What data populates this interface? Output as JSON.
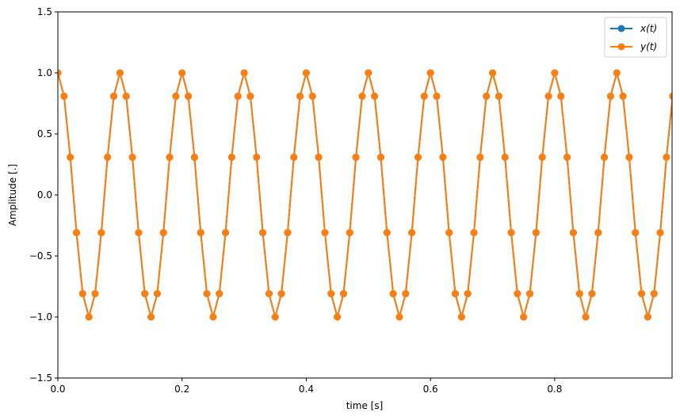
{
  "chart_data": {
    "type": "line",
    "title": "",
    "xlabel": "time [s]",
    "ylabel": "Amplitude [.]",
    "xlim": [
      0.0,
      0.99
    ],
    "ylim": [
      -1.5,
      1.5
    ],
    "xticks": [
      0.0,
      0.2,
      0.4,
      0.6,
      0.8
    ],
    "xtick_labels": [
      "0.0",
      "0.2",
      "0.4",
      "0.6",
      "0.8"
    ],
    "yticks": [
      -1.5,
      -1.0,
      -0.5,
      0.0,
      0.5,
      1.0,
      1.5
    ],
    "ytick_labels": [
      "−1.5",
      "−1.0",
      "−0.5",
      "0.0",
      "0.5",
      "1.0",
      "1.5"
    ],
    "grid": false,
    "legend_position": "upper right",
    "sample_rate_hz": 100,
    "signal_frequency_hz": 10,
    "x": [
      0.0,
      0.01,
      0.02,
      0.03,
      0.04,
      0.05,
      0.06,
      0.07,
      0.08,
      0.09,
      0.1,
      0.11,
      0.12,
      0.13,
      0.14,
      0.15,
      0.16,
      0.17,
      0.18,
      0.19,
      0.2,
      0.21,
      0.22,
      0.23,
      0.24,
      0.25,
      0.26,
      0.27,
      0.28,
      0.29,
      0.3,
      0.31,
      0.32,
      0.33,
      0.34,
      0.35,
      0.36,
      0.37,
      0.38,
      0.39,
      0.4,
      0.41,
      0.42,
      0.43,
      0.44,
      0.45,
      0.46,
      0.47,
      0.48,
      0.49,
      0.5,
      0.51,
      0.52,
      0.53,
      0.54,
      0.55,
      0.56,
      0.57,
      0.58,
      0.59,
      0.6,
      0.61,
      0.62,
      0.63,
      0.64,
      0.65,
      0.66,
      0.67,
      0.68,
      0.69,
      0.7,
      0.71,
      0.72,
      0.73,
      0.74,
      0.75,
      0.76,
      0.77,
      0.78,
      0.79,
      0.8,
      0.81,
      0.82,
      0.83,
      0.84,
      0.85,
      0.86,
      0.87,
      0.88,
      0.89,
      0.9,
      0.91,
      0.92,
      0.93,
      0.94,
      0.95,
      0.96,
      0.97,
      0.98,
      0.99
    ],
    "series": [
      {
        "name": "x(t)",
        "color": "#1f77b4",
        "marker": "o",
        "values": [
          1.0,
          0.809,
          0.309,
          -0.309,
          -0.809,
          -1.0,
          -0.809,
          -0.309,
          0.309,
          0.809,
          1.0,
          0.809,
          0.309,
          -0.309,
          -0.809,
          -1.0,
          -0.809,
          -0.309,
          0.309,
          0.809,
          1.0,
          0.809,
          0.309,
          -0.309,
          -0.809,
          -1.0,
          -0.809,
          -0.309,
          0.309,
          0.809,
          1.0,
          0.809,
          0.309,
          -0.309,
          -0.809,
          -1.0,
          -0.809,
          -0.309,
          0.309,
          0.809,
          1.0,
          0.809,
          0.309,
          -0.309,
          -0.809,
          -1.0,
          -0.809,
          -0.309,
          0.309,
          0.809,
          1.0,
          0.809,
          0.309,
          -0.309,
          -0.809,
          -1.0,
          -0.809,
          -0.309,
          0.309,
          0.809,
          1.0,
          0.809,
          0.309,
          -0.309,
          -0.809,
          -1.0,
          -0.809,
          -0.309,
          0.309,
          0.809,
          1.0,
          0.809,
          0.309,
          -0.309,
          -0.809,
          -1.0,
          -0.809,
          -0.309,
          0.309,
          0.809,
          1.0,
          0.809,
          0.309,
          -0.309,
          -0.809,
          -1.0,
          -0.809,
          -0.309,
          0.309,
          0.809,
          1.0,
          0.809,
          0.309,
          -0.309,
          -0.809,
          -1.0,
          -0.809,
          -0.309,
          0.309,
          0.809
        ]
      },
      {
        "name": "y(t)",
        "color": "#ff7f0e",
        "marker": "o",
        "values": [
          1.0,
          0.809,
          0.309,
          -0.309,
          -0.809,
          -1.0,
          -0.809,
          -0.309,
          0.309,
          0.809,
          1.0,
          0.809,
          0.309,
          -0.309,
          -0.809,
          -1.0,
          -0.809,
          -0.309,
          0.309,
          0.809,
          1.0,
          0.809,
          0.309,
          -0.309,
          -0.809,
          -1.0,
          -0.809,
          -0.309,
          0.309,
          0.809,
          1.0,
          0.809,
          0.309,
          -0.309,
          -0.809,
          -1.0,
          -0.809,
          -0.309,
          0.309,
          0.809,
          1.0,
          0.809,
          0.309,
          -0.309,
          -0.809,
          -1.0,
          -0.809,
          -0.309,
          0.309,
          0.809,
          1.0,
          0.809,
          0.309,
          -0.309,
          -0.809,
          -1.0,
          -0.809,
          -0.309,
          0.309,
          0.809,
          1.0,
          0.809,
          0.309,
          -0.309,
          -0.809,
          -1.0,
          -0.809,
          -0.309,
          0.309,
          0.809,
          1.0,
          0.809,
          0.309,
          -0.309,
          -0.809,
          -1.0,
          -0.809,
          -0.309,
          0.309,
          0.809,
          1.0,
          0.809,
          0.309,
          -0.309,
          -0.809,
          -1.0,
          -0.809,
          -0.309,
          0.309,
          0.809,
          1.0,
          0.809,
          0.309,
          -0.309,
          -0.809,
          -1.0,
          -0.809,
          -0.309,
          0.309,
          0.809
        ]
      }
    ]
  }
}
